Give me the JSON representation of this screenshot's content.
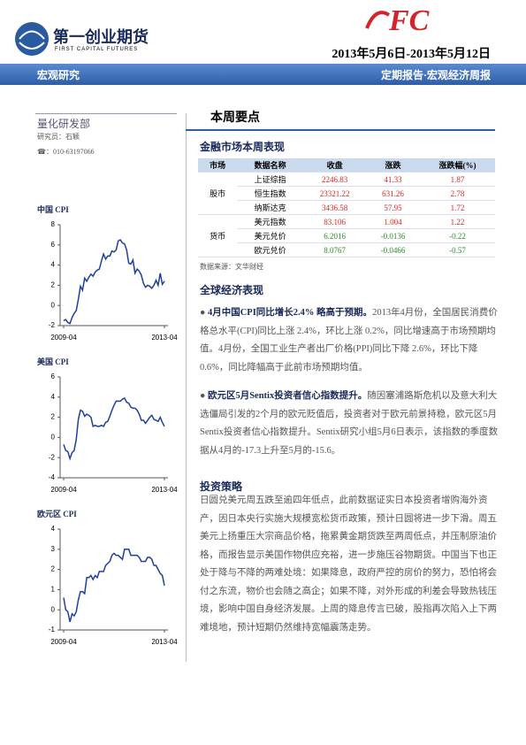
{
  "header": {
    "company": "第一创业期货",
    "company_en": "FIRST CAPITAL FUTURES",
    "date": "2013年5月6日-2013年5月12日",
    "section": "宏观研究",
    "report_type": "定期报告·宏观经济周报"
  },
  "sidebar": {
    "department": "量化研发部",
    "researcher": "研究员：石颖",
    "phone": "☎：010-63197066"
  },
  "chart_data": [
    {
      "type": "line",
      "title": "中国 CPI",
      "categories": [
        "2009-04",
        null,
        null,
        null,
        null,
        null,
        null,
        null,
        null,
        null,
        null,
        null,
        null,
        null,
        null,
        null,
        null,
        null,
        null,
        null,
        null,
        null,
        null,
        null,
        null,
        null,
        null,
        null,
        null,
        null,
        null,
        null,
        null,
        null,
        null,
        null,
        null,
        null,
        null,
        null,
        null,
        null,
        null,
        null,
        null,
        null,
        null,
        null,
        "2013-04"
      ],
      "values": [
        -1.5,
        -1.4,
        -1.7,
        -1.8,
        -1.2,
        -0.8,
        -0.5,
        0.6,
        1.9,
        1.5,
        2.7,
        2.4,
        2.8,
        3.1,
        2.9,
        3.3,
        3.5,
        3.6,
        4.4,
        5.1,
        4.6,
        4.9,
        4.9,
        5.4,
        5.3,
        5.5,
        6.4,
        6.5,
        6.2,
        6.1,
        5.5,
        4.2,
        4.1,
        4.5,
        3.2,
        3.6,
        3.4,
        3.0,
        2.2,
        1.8,
        2.0,
        1.9,
        1.7,
        2.0,
        2.5,
        2.0,
        3.2,
        2.1,
        2.4
      ],
      "color": "#1f3f9a",
      "ylim": [
        -2,
        8
      ],
      "yticks": [
        -2,
        0,
        2,
        4,
        6,
        8
      ]
    },
    {
      "type": "line",
      "title": "美国 CPI",
      "categories": [
        "2009-04",
        null,
        null,
        null,
        null,
        null,
        null,
        null,
        null,
        null,
        null,
        null,
        null,
        null,
        null,
        null,
        null,
        null,
        null,
        null,
        null,
        null,
        null,
        null,
        null,
        null,
        null,
        null,
        null,
        null,
        null,
        null,
        null,
        null,
        null,
        null,
        null,
        null,
        null,
        null,
        null,
        null,
        null,
        null,
        null,
        null,
        null,
        null,
        "2013-04"
      ],
      "values": [
        -0.7,
        -1.3,
        -1.4,
        -2.1,
        -1.5,
        -1.3,
        -0.2,
        1.8,
        2.7,
        2.6,
        2.1,
        2.3,
        2.2,
        2.0,
        1.1,
        1.2,
        1.1,
        1.1,
        1.2,
        1.1,
        1.5,
        1.6,
        2.1,
        2.7,
        3.2,
        3.6,
        3.6,
        3.6,
        3.8,
        3.9,
        3.5,
        3.4,
        3.0,
        2.9,
        2.9,
        2.7,
        2.3,
        1.7,
        1.7,
        1.4,
        1.7,
        2.0,
        2.2,
        1.8,
        1.7,
        1.6,
        2.0,
        1.5,
        1.1
      ],
      "color": "#1f3f9a",
      "ylim": [
        -4,
        6
      ],
      "yticks": [
        -4,
        -2,
        0,
        2,
        4,
        6
      ]
    },
    {
      "type": "line",
      "title": "欧元区 CPI",
      "categories": [
        "2009-04",
        null,
        null,
        null,
        null,
        null,
        null,
        null,
        null,
        null,
        null,
        null,
        null,
        null,
        null,
        null,
        null,
        null,
        null,
        null,
        null,
        null,
        null,
        null,
        null,
        null,
        null,
        null,
        null,
        null,
        null,
        null,
        null,
        null,
        null,
        null,
        null,
        null,
        null,
        null,
        null,
        null,
        null,
        null,
        null,
        null,
        null,
        null,
        "2013-04"
      ],
      "values": [
        0.6,
        0.0,
        -0.1,
        -0.6,
        -0.2,
        -0.3,
        -0.1,
        0.5,
        0.9,
        0.9,
        0.8,
        1.6,
        1.6,
        1.7,
        1.5,
        1.7,
        1.6,
        1.9,
        1.9,
        1.9,
        2.2,
        2.3,
        2.4,
        2.7,
        2.8,
        2.7,
        2.7,
        2.6,
        2.5,
        3.0,
        3.0,
        3.0,
        2.7,
        2.7,
        2.7,
        2.7,
        2.6,
        2.4,
        2.4,
        2.4,
        2.6,
        2.6,
        2.5,
        2.2,
        2.2,
        2.0,
        1.8,
        1.7,
        1.2
      ],
      "color": "#1f3f9a",
      "ylim": [
        -1,
        4
      ],
      "yticks": [
        -1,
        0,
        1,
        2,
        3,
        4
      ]
    }
  ],
  "main": {
    "heading": "本周要点",
    "table_title": "金融市场本周表现",
    "table": {
      "headers": [
        "市场",
        "数据名称",
        "收盘",
        "涨跌",
        "涨跌幅(%)"
      ],
      "groups": [
        {
          "market": "股市",
          "rows": [
            [
              "上证综指",
              "2246.83",
              "41.33",
              "1.87"
            ],
            [
              "恒生指数",
              "23321.22",
              "631.26",
              "2.78"
            ],
            [
              "纳斯达克",
              "3436.58",
              "57.95",
              "1.72"
            ]
          ]
        },
        {
          "market": "货币",
          "rows": [
            [
              "美元指数",
              "83.106",
              "1.004",
              "1.22"
            ],
            [
              "美元兑价",
              "6.2016",
              "-0.0136",
              "-0.22"
            ],
            [
              "欧元兑价",
              "8.0767",
              "-0.0466",
              "-0.57"
            ]
          ]
        }
      ]
    },
    "source": "数据来源：文华财经",
    "global_title": "全球经济表现",
    "bullets": [
      {
        "lead": "4月中国CPI同比增长2.4% 略高于预期。",
        "text": "2013年4月份，全国居民消费价格总水平(CPI)同比上涨 2.4%，环比上涨 0.2%，同比增速高于市场预期均值。4月份，全国工业生产者出厂价格(PPI)同比下降 2.6%，环比下降 0.6%，同比降幅高于此前市场预期均值。"
      },
      {
        "lead": "欧元区5月Sentix投资者信心指数提升。",
        "text": "随因塞浦路斯危机以及意大利大选僵局引发的2个月的欧元贬值后，投资者对于欧元前景持稳，欧元区5月Sentix投资者信心指数提升。Sentix研究小组5月6日表示，该指数的季度数据从4月的-17.3上升至5月的-15.6。"
      }
    ],
    "strategy_title": "投资策略",
    "strategy": "日圆兑美元周五跌至逾四年低点，此前数据证实日本投资者增购海外资产，因日本央行实施大规模宽松货币政策，预计日圆将进一步下滑。周五美元上扬重压大宗商品价格，拖累黄金期货跌至两周低点，并压制原油价格，而报告显示美国作物供应充裕，进一步施压谷物期货。中国当下也正处于降与不降的两难处境：如果降息，政府严控的房价的努力，恐怕将会付之东流，物价也会随之高企；如果不降，对外形成的利差会导致热钱压境，影响中国自身经济发展。上周的降息传言已破，股指再次陷入上下两难境地，预计短期仍然维持宽幅震荡走势。"
  }
}
